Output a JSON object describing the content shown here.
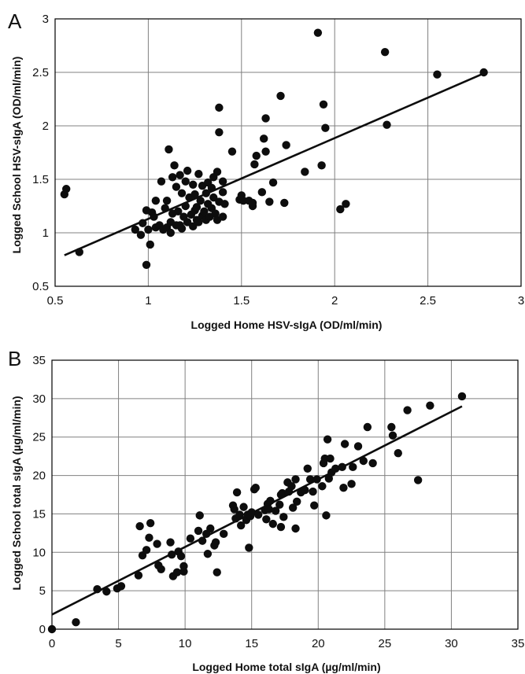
{
  "chart_data": [
    {
      "panel": "A",
      "type": "scatter",
      "title": "",
      "xlabel": "Logged Home HSV-sIgA (OD/ml/min)",
      "ylabel": "Logged School HSV-sIgA (OD/ml/min)",
      "xlim": [
        0.5,
        3
      ],
      "ylim": [
        0.5,
        3
      ],
      "xticks": [
        0.5,
        1,
        1.5,
        2,
        2.5,
        3
      ],
      "yticks": [
        0.5,
        1,
        1.5,
        2,
        2.5,
        3
      ],
      "grid": true,
      "trendline": [
        [
          0.55,
          0.79
        ],
        [
          2.8,
          2.49
        ]
      ],
      "points": [
        [
          0.55,
          1.36
        ],
        [
          0.56,
          1.41
        ],
        [
          0.63,
          0.82
        ],
        [
          0.93,
          1.03
        ],
        [
          0.96,
          0.98
        ],
        [
          0.97,
          1.09
        ],
        [
          0.99,
          0.7
        ],
        [
          0.99,
          1.21
        ],
        [
          1.0,
          1.03
        ],
        [
          1.01,
          0.89
        ],
        [
          1.02,
          1.19
        ],
        [
          1.03,
          1.15
        ],
        [
          1.04,
          1.05
        ],
        [
          1.04,
          1.3
        ],
        [
          1.06,
          1.07
        ],
        [
          1.07,
          1.48
        ],
        [
          1.08,
          1.03
        ],
        [
          1.09,
          1.23
        ],
        [
          1.1,
          1.3
        ],
        [
          1.1,
          1.05
        ],
        [
          1.11,
          1.78
        ],
        [
          1.12,
          1.1
        ],
        [
          1.12,
          1.0
        ],
        [
          1.13,
          1.52
        ],
        [
          1.13,
          1.18
        ],
        [
          1.14,
          1.63
        ],
        [
          1.15,
          1.07
        ],
        [
          1.15,
          1.43
        ],
        [
          1.16,
          1.2
        ],
        [
          1.17,
          1.54
        ],
        [
          1.17,
          1.07
        ],
        [
          1.18,
          1.37
        ],
        [
          1.18,
          1.04
        ],
        [
          1.19,
          1.15
        ],
        [
          1.2,
          1.25
        ],
        [
          1.2,
          1.48
        ],
        [
          1.21,
          1.1
        ],
        [
          1.21,
          1.58
        ],
        [
          1.22,
          1.33
        ],
        [
          1.23,
          1.17
        ],
        [
          1.24,
          1.45
        ],
        [
          1.24,
          1.06
        ],
        [
          1.25,
          1.21
        ],
        [
          1.25,
          1.36
        ],
        [
          1.26,
          1.12
        ],
        [
          1.26,
          1.24
        ],
        [
          1.27,
          1.55
        ],
        [
          1.27,
          1.1
        ],
        [
          1.28,
          1.3
        ],
        [
          1.29,
          1.16
        ],
        [
          1.29,
          1.44
        ],
        [
          1.3,
          1.2
        ],
        [
          1.31,
          1.12
        ],
        [
          1.31,
          1.37
        ],
        [
          1.32,
          1.27
        ],
        [
          1.32,
          1.47
        ],
        [
          1.33,
          1.15
        ],
        [
          1.34,
          1.42
        ],
        [
          1.34,
          1.23
        ],
        [
          1.35,
          1.52
        ],
        [
          1.35,
          1.33
        ],
        [
          1.36,
          1.18
        ],
        [
          1.37,
          1.57
        ],
        [
          1.37,
          1.12
        ],
        [
          1.38,
          1.94
        ],
        [
          1.38,
          2.17
        ],
        [
          1.38,
          1.29
        ],
        [
          1.4,
          1.38
        ],
        [
          1.4,
          1.48
        ],
        [
          1.4,
          1.15
        ],
        [
          1.41,
          1.27
        ],
        [
          1.45,
          1.76
        ],
        [
          1.49,
          1.31
        ],
        [
          1.5,
          1.35
        ],
        [
          1.51,
          1.3
        ],
        [
          1.54,
          1.3
        ],
        [
          1.56,
          1.25
        ],
        [
          1.57,
          1.64
        ],
        [
          1.58,
          1.72
        ],
        [
          1.61,
          1.38
        ],
        [
          1.62,
          1.88
        ],
        [
          1.63,
          1.76
        ],
        [
          1.63,
          2.07
        ],
        [
          1.65,
          1.29
        ],
        [
          1.67,
          1.47
        ],
        [
          1.71,
          2.28
        ],
        [
          1.73,
          1.28
        ],
        [
          1.74,
          1.82
        ],
        [
          1.84,
          1.57
        ],
        [
          1.91,
          2.87
        ],
        [
          1.93,
          1.63
        ],
        [
          1.94,
          2.2
        ],
        [
          1.95,
          1.98
        ],
        [
          2.03,
          1.22
        ],
        [
          2.06,
          1.27
        ],
        [
          2.27,
          2.69
        ],
        [
          2.28,
          2.01
        ],
        [
          2.55,
          2.48
        ],
        [
          2.8,
          2.5
        ],
        [
          1.56,
          1.28
        ]
      ]
    },
    {
      "panel": "B",
      "type": "scatter",
      "title": "",
      "xlabel": "Logged Home total sIgA (µg/ml/min)",
      "ylabel": "Logged School total sIgA (µg/ml/min)",
      "xlim": [
        0,
        35
      ],
      "ylim": [
        0,
        35
      ],
      "xticks": [
        0,
        5,
        10,
        15,
        20,
        25,
        30,
        35
      ],
      "yticks": [
        0,
        5,
        10,
        15,
        20,
        25,
        30,
        35
      ],
      "grid": true,
      "trendline": [
        [
          0,
          1.9
        ],
        [
          30.8,
          29.0
        ]
      ],
      "points": [
        [
          0,
          0
        ],
        [
          1.8,
          0.9
        ],
        [
          3.4,
          5.2
        ],
        [
          4.1,
          4.9
        ],
        [
          4.9,
          5.3
        ],
        [
          5.2,
          5.6
        ],
        [
          6.5,
          7.0
        ],
        [
          6.6,
          13.4
        ],
        [
          6.8,
          9.6
        ],
        [
          7.1,
          10.3
        ],
        [
          7.3,
          11.9
        ],
        [
          7.4,
          13.8
        ],
        [
          7.9,
          11.1
        ],
        [
          8.0,
          8.3
        ],
        [
          8.2,
          7.8
        ],
        [
          8.9,
          11.3
        ],
        [
          9.0,
          9.7
        ],
        [
          9.1,
          6.9
        ],
        [
          9.4,
          7.4
        ],
        [
          9.5,
          10.1
        ],
        [
          9.7,
          9.5
        ],
        [
          9.9,
          7.5
        ],
        [
          9.9,
          8.2
        ],
        [
          10.4,
          11.8
        ],
        [
          11.0,
          12.8
        ],
        [
          11.1,
          14.8
        ],
        [
          11.3,
          11.5
        ],
        [
          11.6,
          12.4
        ],
        [
          11.7,
          9.8
        ],
        [
          11.9,
          13.1
        ],
        [
          12.2,
          10.9
        ],
        [
          12.3,
          11.3
        ],
        [
          12.4,
          7.4
        ],
        [
          12.9,
          12.4
        ],
        [
          13.6,
          16.1
        ],
        [
          13.7,
          15.6
        ],
        [
          13.8,
          14.4
        ],
        [
          13.9,
          17.8
        ],
        [
          14.1,
          14.9
        ],
        [
          14.2,
          13.5
        ],
        [
          14.4,
          15.9
        ],
        [
          14.6,
          14.2
        ],
        [
          14.7,
          14.9
        ],
        [
          14.8,
          10.6
        ],
        [
          14.9,
          14.7
        ],
        [
          15.0,
          15.2
        ],
        [
          15.2,
          18.2
        ],
        [
          15.3,
          18.4
        ],
        [
          15.5,
          14.9
        ],
        [
          16.0,
          15.5
        ],
        [
          16.1,
          14.3
        ],
        [
          16.2,
          16.3
        ],
        [
          16.3,
          15.6
        ],
        [
          16.4,
          16.7
        ],
        [
          16.6,
          13.7
        ],
        [
          16.8,
          15.4
        ],
        [
          17.1,
          16.2
        ],
        [
          17.2,
          13.3
        ],
        [
          17.3,
          17.7
        ],
        [
          17.4,
          14.6
        ],
        [
          17.7,
          19.1
        ],
        [
          17.8,
          17.9
        ],
        [
          18.0,
          18.6
        ],
        [
          18.1,
          15.8
        ],
        [
          18.3,
          13.1
        ],
        [
          18.4,
          16.6
        ],
        [
          18.7,
          17.8
        ],
        [
          19.0,
          18.1
        ],
        [
          19.2,
          20.9
        ],
        [
          19.4,
          19.5
        ],
        [
          19.6,
          17.9
        ],
        [
          19.7,
          16.1
        ],
        [
          19.9,
          19.5
        ],
        [
          20.3,
          18.6
        ],
        [
          20.4,
          21.6
        ],
        [
          20.5,
          22.2
        ],
        [
          20.6,
          14.8
        ],
        [
          20.7,
          24.7
        ],
        [
          20.8,
          19.6
        ],
        [
          20.9,
          22.2
        ],
        [
          21.0,
          20.4
        ],
        [
          21.3,
          20.9
        ],
        [
          21.8,
          21.1
        ],
        [
          21.9,
          18.4
        ],
        [
          22.0,
          24.1
        ],
        [
          22.5,
          18.9
        ],
        [
          22.6,
          21.1
        ],
        [
          23.0,
          23.8
        ],
        [
          23.4,
          21.9
        ],
        [
          23.7,
          26.3
        ],
        [
          24.1,
          21.6
        ],
        [
          25.5,
          26.3
        ],
        [
          25.6,
          25.2
        ],
        [
          26.0,
          22.9
        ],
        [
          26.7,
          28.5
        ],
        [
          27.5,
          19.4
        ],
        [
          28.4,
          29.1
        ],
        [
          30.8,
          30.3
        ],
        [
          18.3,
          19.5
        ],
        [
          17.2,
          17.5
        ]
      ]
    }
  ]
}
